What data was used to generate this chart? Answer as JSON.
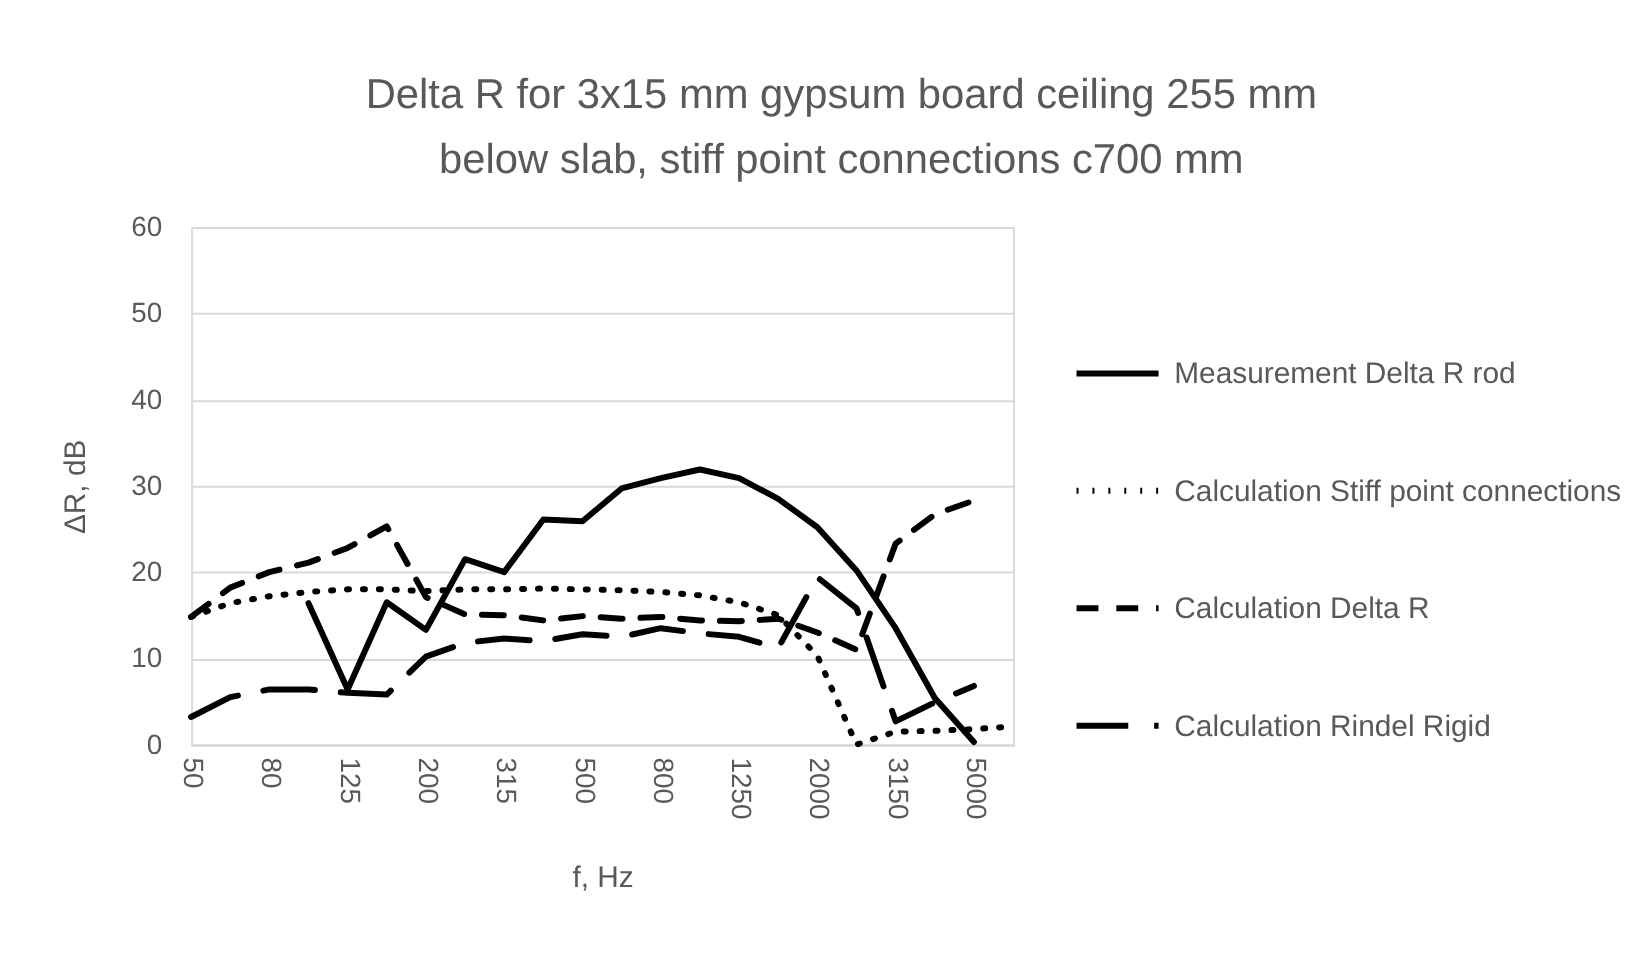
{
  "chart_data": {
    "type": "line",
    "title": "Delta R for 3x15 mm gypsum board ceiling 255 mm below slab, stiff point connections c700 mm",
    "xlabel": "f, Hz",
    "ylabel": "ΔR, dB",
    "categories": [
      "50",
      null,
      "80",
      null,
      "125",
      null,
      "200",
      null,
      "315",
      null,
      "500",
      null,
      "800",
      null,
      "1250",
      null,
      "2000",
      null,
      "3150",
      null,
      "5000",
      null
    ],
    "ylim": [
      0,
      60
    ],
    "yticks": [
      0,
      10,
      20,
      30,
      40,
      50,
      60
    ],
    "grid": "y",
    "legend": "right",
    "series": [
      {
        "name": "Measurement Delta R rod",
        "color": "#000000",
        "line_style": "solid",
        "values": [
          null,
          null,
          null,
          16.4,
          6.4,
          16.5,
          13.3,
          21.5,
          20.0,
          26.1,
          25.9,
          29.7,
          30.9,
          31.9,
          30.9,
          28.5,
          25.2,
          20.2,
          13.5,
          5.4,
          0.3,
          null
        ]
      },
      {
        "name": "Calculation Stiff point connections",
        "color": "#000000",
        "line_style": "dotted",
        "values": [
          14.8,
          16.4,
          17.2,
          17.7,
          18.0,
          18.0,
          17.8,
          18.0,
          18.0,
          18.1,
          18.0,
          17.9,
          17.7,
          17.3,
          16.5,
          15.0,
          10.3,
          0.0,
          1.5,
          1.6,
          1.8,
          2.1
        ]
      },
      {
        "name": "Calculation Delta R",
        "color": "#000000",
        "line_style": "dashed",
        "values": [
          14.8,
          18.2,
          20.0,
          21.1,
          22.8,
          25.3,
          17.1,
          15.1,
          15.0,
          14.4,
          14.9,
          14.6,
          14.8,
          14.4,
          14.3,
          14.6,
          13.0,
          11.0,
          23.3,
          26.7,
          28.3,
          null
        ]
      },
      {
        "name": "Calculation Rindel Rigid",
        "color": "#000000",
        "line_style": "longdash",
        "values": [
          3.2,
          5.5,
          6.4,
          6.4,
          6.0,
          5.8,
          10.2,
          11.8,
          12.3,
          12.0,
          12.8,
          12.5,
          13.5,
          12.9,
          12.5,
          11.2,
          19.4,
          15.8,
          2.7,
          4.9,
          6.8,
          null
        ]
      }
    ]
  }
}
